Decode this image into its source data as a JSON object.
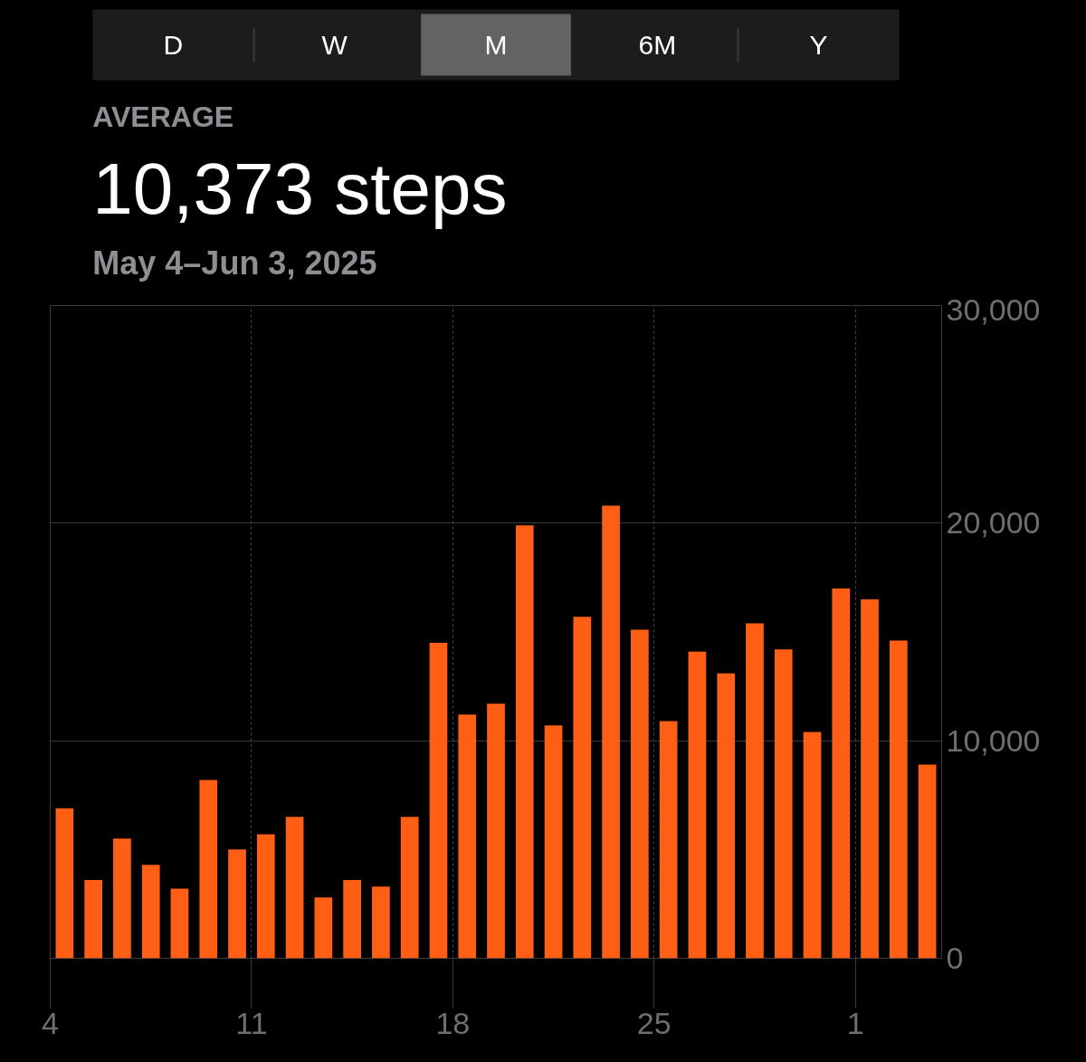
{
  "chart_data": {
    "type": "bar",
    "title": "AVERAGE",
    "subtitle": "10,373 steps",
    "annotations": [
      "D",
      "W",
      "M",
      "6M",
      "Y",
      "May 4–Jun 3, 2025"
    ],
    "x": [
      "2025-05-04T12:00",
      "2025-05-05T12:00",
      "2025-05-06T12:00",
      "2025-05-07T12:00",
      "2025-05-08T12:00",
      "2025-05-09T12:00",
      "2025-05-10T12:00",
      "2025-05-11T12:00",
      "2025-05-12T12:00",
      "2025-05-13T12:00",
      "2025-05-14T12:00",
      "2025-05-15T12:00",
      "2025-05-16T12:00",
      "2025-05-17T12:00",
      "2025-05-18T12:00",
      "2025-05-19T12:00",
      "2025-05-20T12:00",
      "2025-05-21T12:00",
      "2025-05-22T12:00",
      "2025-05-23T12:00",
      "2025-05-24T12:00",
      "2025-05-25T12:00",
      "2025-05-26T12:00",
      "2025-05-27T12:00",
      "2025-05-28T12:00",
      "2025-05-29T12:00",
      "2025-05-30T12:00",
      "2025-05-31T12:00",
      "2025-06-01T12:00",
      "2025-06-02T12:00",
      "2025-06-03T12:00"
    ],
    "series": [
      {
        "color": "#ff5f15",
        "values": [
          6900,
          3600,
          5500,
          4300,
          3200,
          8200,
          5000,
          5700,
          6500,
          2800,
          3600,
          3300,
          6500,
          14500,
          11200,
          11700,
          19900,
          10700,
          15700,
          20800,
          15100,
          10900,
          14100,
          13100,
          15400,
          14200,
          10400,
          17000,
          16500,
          14600,
          8900
        ]
      }
    ],
    "xlim": [
      "2025-05-04",
      "2025-06-04"
    ],
    "xticks": [
      {
        "value": "2025-05-04",
        "label": "4"
      },
      {
        "value": "2025-05-11",
        "label": "11"
      },
      {
        "value": "2025-05-18",
        "label": "18"
      },
      {
        "value": "2025-05-25",
        "label": "25"
      },
      {
        "value": "2025-06-01",
        "label": "1"
      }
    ],
    "ylim": [
      0,
      30000
    ],
    "yticks": [
      {
        "value": 0,
        "label": "0"
      },
      {
        "value": 10000,
        "label": "10,000"
      },
      {
        "value": 20000,
        "label": "20,000"
      },
      {
        "value": 30000,
        "label": "30,000"
      }
    ],
    "grid": true
  }
}
